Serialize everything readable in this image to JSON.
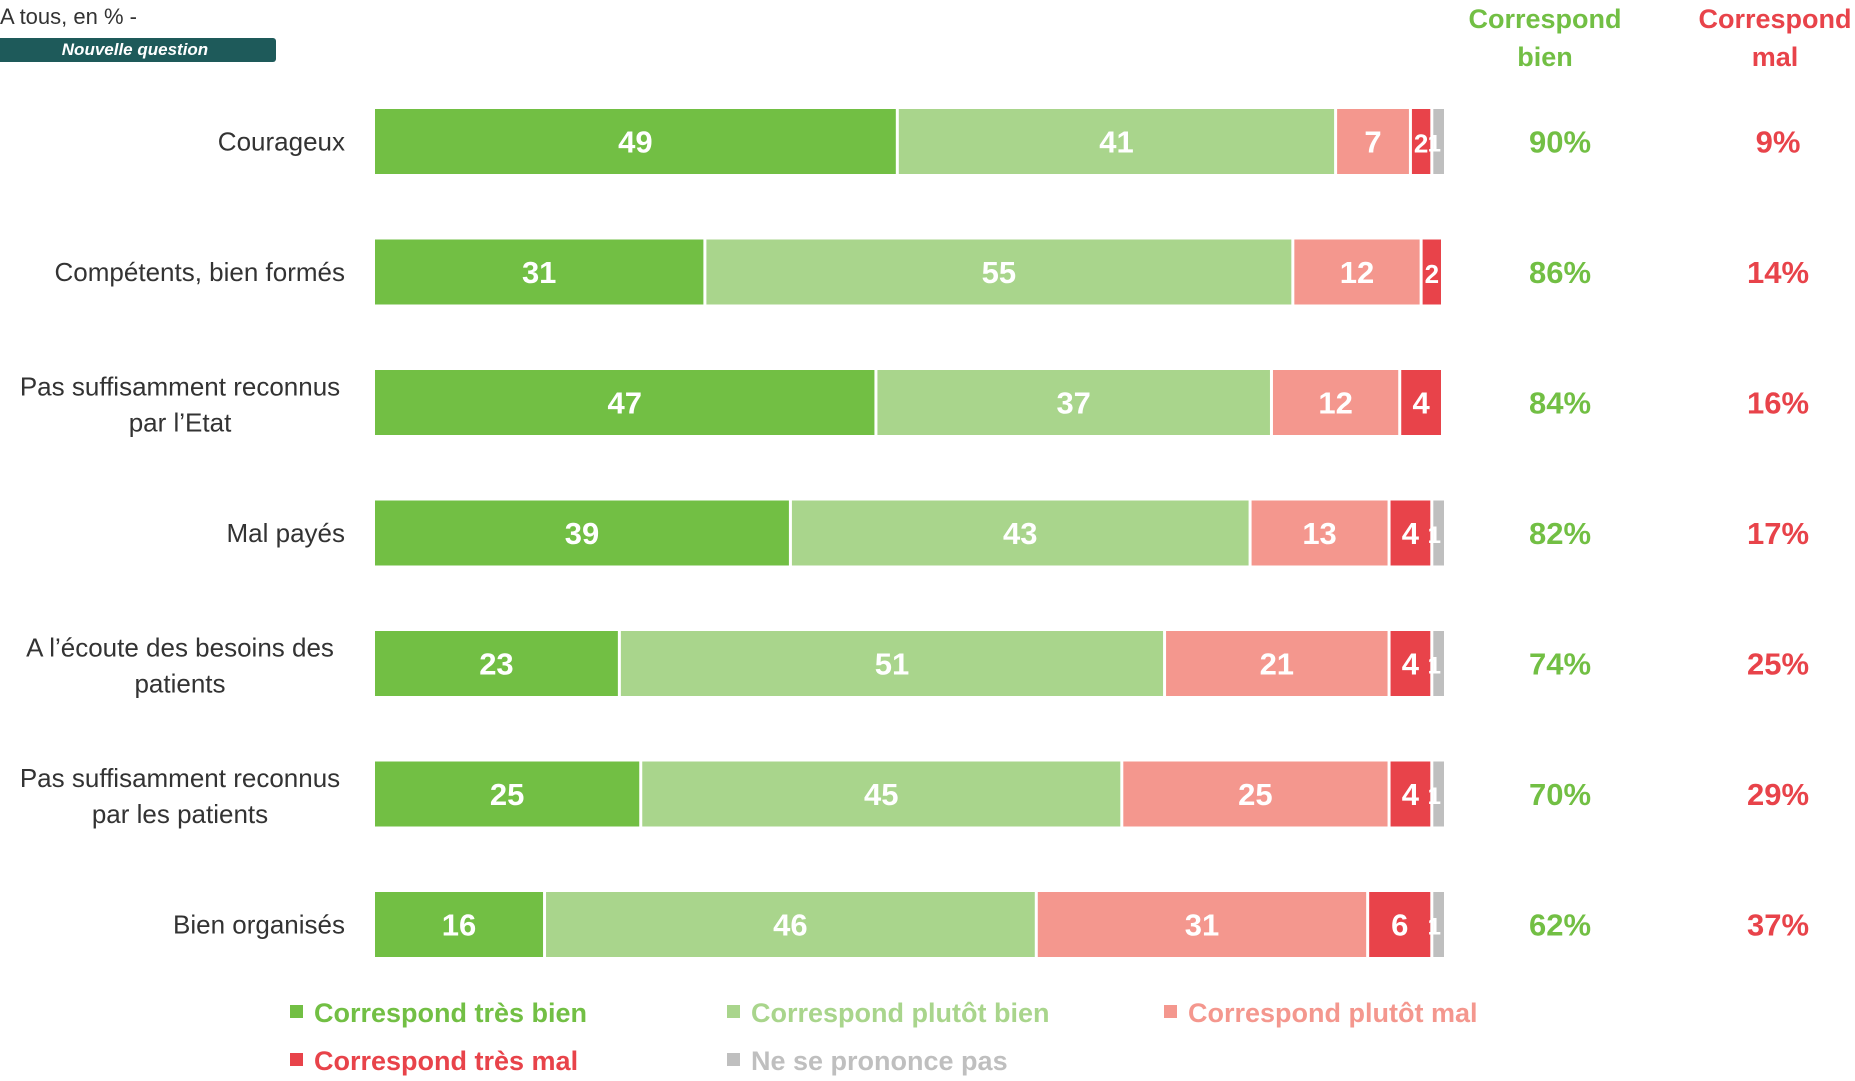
{
  "header": {
    "note": "A tous, en % -",
    "badge": "Nouvelle question",
    "col_bien": "Correspond bien",
    "col_mal": "Correspond mal"
  },
  "colors": {
    "tres_bien": "#72bf44",
    "plutot_bien": "#a9d58c",
    "plutot_mal": "#f4978e",
    "tres_mal": "#e8434a",
    "nsp": "#bfbfbf",
    "summary_bien": "#72bf44",
    "summary_mal": "#e8434a"
  },
  "chart_data": {
    "type": "bar",
    "orientation": "horizontal",
    "stacked": true,
    "categories": [
      "Courageux",
      "Compétents, bien formés",
      "Pas suffisamment reconnus par l’Etat",
      "Mal payés",
      "A l’écoute des besoins des patients",
      "Pas suffisamment reconnus par les patients",
      "Bien organisés"
    ],
    "series": [
      {
        "name": "Correspond très bien",
        "color": "#72bf44",
        "values": [
          49,
          31,
          47,
          39,
          23,
          25,
          16
        ]
      },
      {
        "name": "Correspond plutôt bien",
        "color": "#a9d58c",
        "values": [
          41,
          55,
          37,
          43,
          51,
          45,
          46
        ]
      },
      {
        "name": "Correspond plutôt mal",
        "color": "#f4978e",
        "values": [
          7,
          12,
          12,
          13,
          21,
          25,
          31
        ]
      },
      {
        "name": "Correspond très mal",
        "color": "#e8434a",
        "values": [
          2,
          2,
          4,
          4,
          4,
          4,
          6
        ]
      },
      {
        "name": "Ne se prononce pas",
        "color": "#bfbfbf",
        "values": [
          1,
          0,
          0,
          1,
          1,
          1,
          1
        ]
      }
    ],
    "summary": {
      "bien": [
        "90%",
        "86%",
        "84%",
        "82%",
        "74%",
        "70%",
        "62%"
      ],
      "mal": [
        "9%",
        "14%",
        "16%",
        "17%",
        "25%",
        "29%",
        "37%"
      ]
    },
    "xlim": [
      0,
      100
    ],
    "legend": "bottom"
  }
}
